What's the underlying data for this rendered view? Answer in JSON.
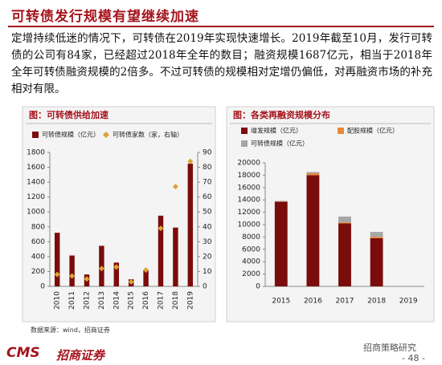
{
  "title": "可转债发行规模有望继续加速",
  "paragraph": "定增持续低迷的情况下，可转债在2019年实现快速增长。2019年截至10月，发行可转债的公司有84家，已经超过2018年全年的数目；融资规模1687亿元，相当于2018年全年可转债融资规模的2倍多。不过可转债的规模相对定增仍偏低，对再融资市场的补充相对有限。",
  "chart_data": [
    {
      "type": "bar",
      "title": "图：可转债供给加速",
      "categories": [
        "2010",
        "2011",
        "2012",
        "2013",
        "2014",
        "2015",
        "2016",
        "2017",
        "2018",
        "2019"
      ],
      "series": [
        {
          "name": "可转债规模（亿元）",
          "color": "#7b0c0c",
          "type": "bar",
          "values": [
            720,
            415,
            160,
            545,
            320,
            95,
            215,
            950,
            790,
            1650
          ]
        },
        {
          "name": "可转债家数（家，右轴）",
          "color": "#d9a431",
          "type": "scatter",
          "axis": "y2",
          "values": [
            8,
            7,
            5,
            12,
            13,
            3,
            11,
            39,
            67,
            84
          ]
        }
      ],
      "ylim": [
        0,
        1800
      ],
      "yticks": [
        0,
        200,
        400,
        600,
        800,
        1000,
        1200,
        1400,
        1600,
        1800
      ],
      "y2lim": [
        0,
        90
      ],
      "y2ticks": [
        0,
        10,
        20,
        30,
        40,
        50,
        60,
        70,
        80,
        90
      ]
    },
    {
      "type": "stacked_bar",
      "title": "图：各类再融资规模分布",
      "categories": [
        "2015",
        "2016",
        "2017",
        "2018",
        "2019"
      ],
      "series": [
        {
          "name": "增发规模（亿元）",
          "color": "#7b0c0c",
          "values": [
            13700,
            18000,
            10200,
            7800,
            null
          ]
        },
        {
          "name": "配股规模（亿元）",
          "color": "#e8883a",
          "values": [
            40,
            300,
            160,
            230,
            null
          ]
        },
        {
          "name": "可转债规模（亿元）",
          "color": "#a6a6a6",
          "values": [
            95,
            215,
            950,
            790,
            null
          ]
        }
      ],
      "ylim": [
        0,
        20000
      ],
      "yticks": [
        0,
        2000,
        4000,
        6000,
        8000,
        10000,
        12000,
        14000,
        16000,
        18000,
        20000
      ]
    }
  ],
  "source": "数据来源：wind，招商证券",
  "footer": {
    "logo": "CMS",
    "company": "招商证券",
    "brand": "招商策略研究",
    "page": "- 48 -"
  }
}
